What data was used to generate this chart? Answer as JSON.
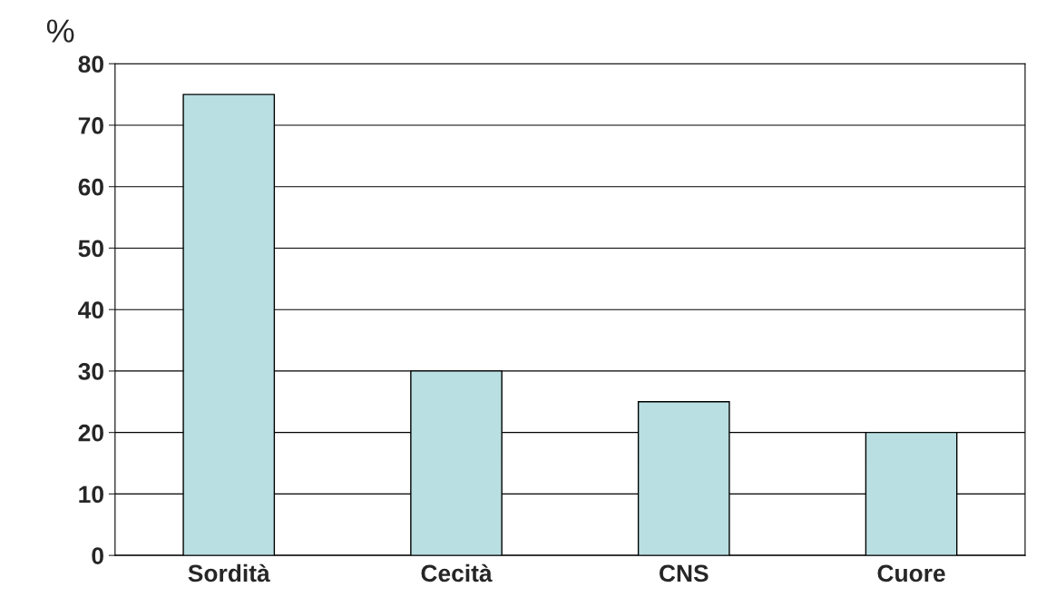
{
  "chart_data": {
    "type": "bar",
    "ylabel": "%",
    "categories": [
      "Sordità",
      "Cecità",
      "CNS",
      "Cuore"
    ],
    "values": [
      75,
      30,
      25,
      20
    ],
    "color": "#b9dfe2",
    "ylim": [
      0,
      80
    ],
    "yticks": [
      0,
      10,
      20,
      30,
      40,
      50,
      60,
      70,
      80
    ],
    "grid": "y"
  }
}
